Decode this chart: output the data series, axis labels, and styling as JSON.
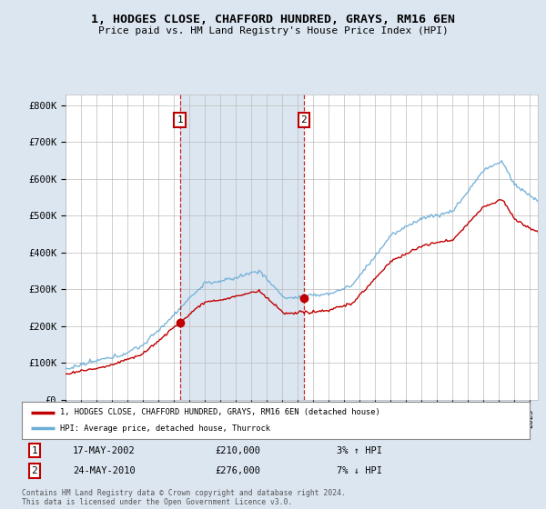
{
  "title": "1, HODGES CLOSE, CHAFFORD HUNDRED, GRAYS, RM16 6EN",
  "subtitle": "Price paid vs. HM Land Registry's House Price Index (HPI)",
  "ylabel_ticks": [
    "£0",
    "£100K",
    "£200K",
    "£300K",
    "£400K",
    "£500K",
    "£600K",
    "£700K",
    "£800K"
  ],
  "ytick_values": [
    0,
    100000,
    200000,
    300000,
    400000,
    500000,
    600000,
    700000,
    800000
  ],
  "ylim": [
    0,
    830000
  ],
  "xlim_start": 1995.0,
  "xlim_end": 2025.5,
  "marker1_x": 2002.38,
  "marker1_y": 210000,
  "marker2_x": 2010.38,
  "marker2_y": 276000,
  "marker1_label": "17-MAY-2002",
  "marker1_price": "£210,000",
  "marker1_hpi": "3% ↑ HPI",
  "marker2_label": "24-MAY-2010",
  "marker2_price": "£276,000",
  "marker2_hpi": "7% ↓ HPI",
  "legend_line1": "1, HODGES CLOSE, CHAFFORD HUNDRED, GRAYS, RM16 6EN (detached house)",
  "legend_line2": "HPI: Average price, detached house, Thurrock",
  "footer": "Contains HM Land Registry data © Crown copyright and database right 2024.\nThis data is licensed under the Open Government Licence v3.0.",
  "line_color_hpi": "#6baed6",
  "line_color_price": "#c00000",
  "bg_color": "#dce6f1",
  "plot_bg": "#ffffff",
  "shade_color": "#dce6f1",
  "grid_color": "#bbbbbb",
  "vline_color_dashed": "#c00000"
}
